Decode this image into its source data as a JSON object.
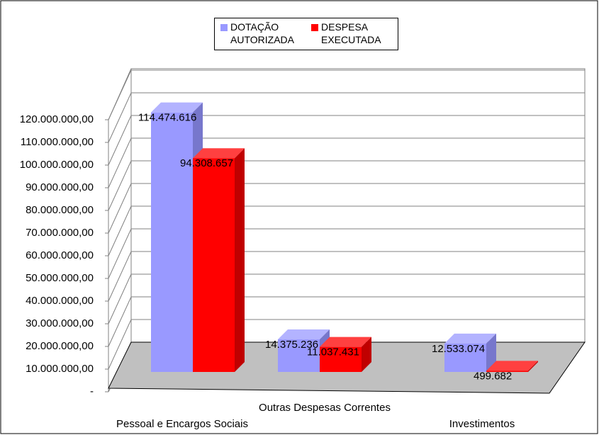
{
  "chart_data": {
    "type": "bar3d",
    "categories": [
      "Pessoal e Encargos Sociais",
      "Outras Despesas Correntes",
      "Investimentos"
    ],
    "series": [
      {
        "name": "DOTAÇÃO AUTORIZADA",
        "color": "#9999ff",
        "values": [
          114474616,
          14375236,
          12533074
        ],
        "value_labels": [
          "114.474.616",
          "14.375.236",
          "12.533.074"
        ]
      },
      {
        "name": "DESPESA EXECUTADA",
        "color": "#ff0000",
        "values": [
          94308657,
          11037431,
          499682
        ],
        "value_labels": [
          "94.308.657",
          "11.037.431",
          "499.682"
        ]
      }
    ],
    "ylim": [
      0,
      120000000
    ],
    "yticks": [
      {
        "value": 0,
        "label": "-"
      },
      {
        "value": 10000000,
        "label": "10.000.000,00"
      },
      {
        "value": 20000000,
        "label": "20.000.000,00"
      },
      {
        "value": 30000000,
        "label": "30.000.000,00"
      },
      {
        "value": 40000000,
        "label": "40.000.000,00"
      },
      {
        "value": 50000000,
        "label": "50.000.000,00"
      },
      {
        "value": 60000000,
        "label": "60.000.000,00"
      },
      {
        "value": 70000000,
        "label": "70.000.000,00"
      },
      {
        "value": 80000000,
        "label": "80.000.000,00"
      },
      {
        "value": 90000000,
        "label": "90.000.000,00"
      },
      {
        "value": 100000000,
        "label": "100.000.000,00"
      },
      {
        "value": 110000000,
        "label": "110.000.000,00"
      },
      {
        "value": 120000000,
        "label": "120.000.000,00"
      }
    ],
    "grid": true,
    "legend": "top"
  }
}
